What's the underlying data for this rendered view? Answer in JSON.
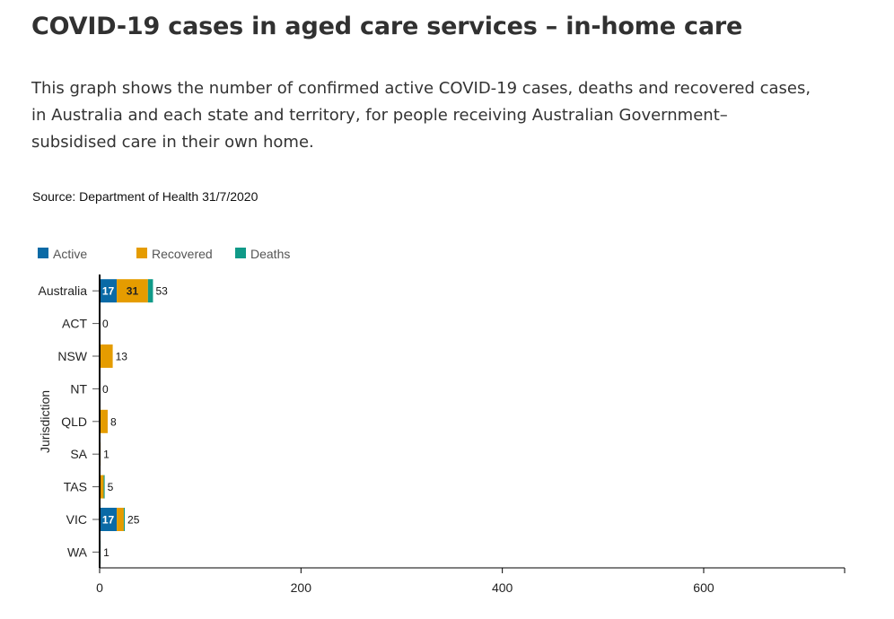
{
  "page": {
    "title": "COVID-19 cases in aged care services – in-home care",
    "subtitle": "This graph shows the number of confirmed active COVID-19 cases, deaths and recovered cases, in Australia and each state and territory, for people receiving Australian Government–subsidised care in their own home.",
    "source": "Source: Department of Health 31/7/2020"
  },
  "chart_data": {
    "type": "bar",
    "orientation": "horizontal",
    "stacked": true,
    "title": "",
    "xlabel": "",
    "ylabel": "Jurisdiction",
    "categories": [
      "Australia",
      "ACT",
      "NSW",
      "NT",
      "QLD",
      "SA",
      "TAS",
      "VIC",
      "WA"
    ],
    "series": [
      {
        "name": "Active",
        "color": "#0a6aa6",
        "values": [
          17,
          0,
          0,
          0,
          0,
          0,
          0,
          17,
          0
        ]
      },
      {
        "name": "Recovered",
        "color": "#e59c00",
        "values": [
          31,
          0,
          13,
          0,
          8,
          1,
          4,
          7,
          0
        ]
      },
      {
        "name": "Deaths",
        "color": "#109a88",
        "values": [
          5,
          0,
          0,
          0,
          0,
          0,
          1,
          1,
          1
        ]
      }
    ],
    "totals": [
      53,
      0,
      13,
      0,
      8,
      1,
      5,
      25,
      1
    ],
    "xlim": [
      0,
      740
    ],
    "xticks": [
      0,
      200,
      400,
      600
    ],
    "grid": false,
    "legend_position": "top-left",
    "segment_labels_min_value": 15
  }
}
